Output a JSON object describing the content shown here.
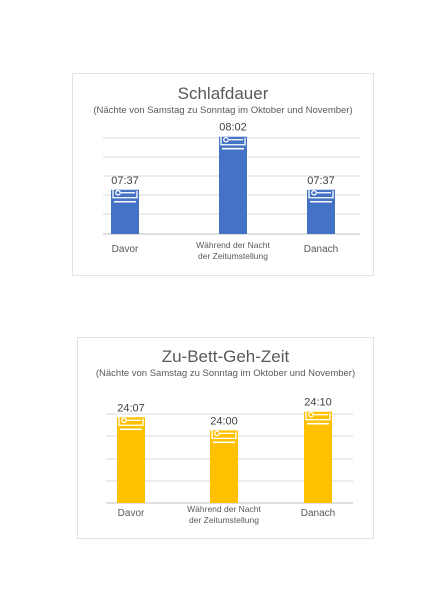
{
  "chart_data": [
    {
      "type": "bar",
      "title": "Schlafdauer",
      "subtitle": "(Nächte von Samstag zu Sonntag im Oktober und November)",
      "categories": [
        [
          "Davor"
        ],
        [
          "Während der Nacht",
          "der Zeitumstellung"
        ],
        [
          "Danach"
        ]
      ],
      "values": [
        7.617,
        8.033,
        7.617
      ],
      "data_labels": [
        "07:37",
        "08:02",
        "07:37"
      ],
      "ylim": [
        7.27,
        8.07
      ],
      "grid": true,
      "color": "#4472c4",
      "icon": "bed-icon"
    },
    {
      "type": "bar",
      "title": "Zu-Bett-Geh-Zeit",
      "subtitle": "(Nächte von Samstag zu Sonntag im Oktober und November)",
      "categories": [
        [
          "Davor"
        ],
        [
          "Während der Nacht",
          "der Zeitumstellung"
        ],
        [
          "Danach"
        ]
      ],
      "values": [
        24.117,
        24.0,
        24.167
      ],
      "data_labels": [
        "24:07",
        "24:00",
        "24:10"
      ],
      "ylim": [
        23.35,
        24.2
      ],
      "grid": true,
      "color": "#ffc000",
      "icon": "bed-icon"
    }
  ]
}
